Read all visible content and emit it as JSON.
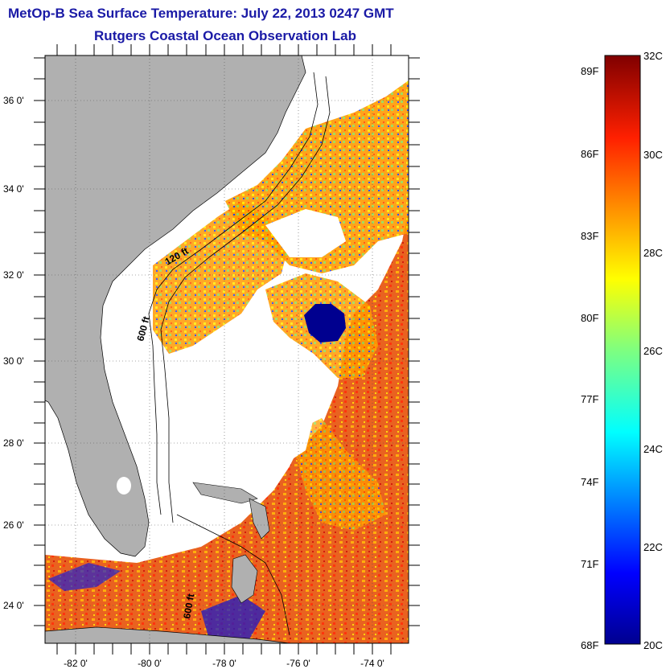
{
  "title": {
    "line1": "MetOp-B Sea Surface Temperature:  July 22, 2013 0247 GMT",
    "line2": "Rutgers Coastal Ocean Observation Lab"
  },
  "map": {
    "lat_labels": [
      "36 0'",
      "34 0'",
      "32 0'",
      "30 0'",
      "28 0'",
      "26 0'",
      "24 0'"
    ],
    "lon_labels": [
      "-82 0'",
      "-80 0'",
      "-78 0'",
      "-76 0'",
      "-74 0'"
    ],
    "contour_labels": [
      "120 ft",
      "600 ft",
      "600 ft"
    ],
    "colors": {
      "land": "#b0b0b0",
      "cloud": "#ffffff",
      "water_warm": "#e8401a",
      "water_cold": "#0000a0"
    }
  },
  "colorbar": {
    "fahrenheit_labels": [
      "89F",
      "86F",
      "83F",
      "80F",
      "77F",
      "74F",
      "71F",
      "68F"
    ],
    "celsius_labels": [
      "32C",
      "30C",
      "28C",
      "26C",
      "24C",
      "22C",
      "20C"
    ],
    "range_c": [
      20,
      32
    ],
    "range_f": [
      68,
      89
    ]
  }
}
